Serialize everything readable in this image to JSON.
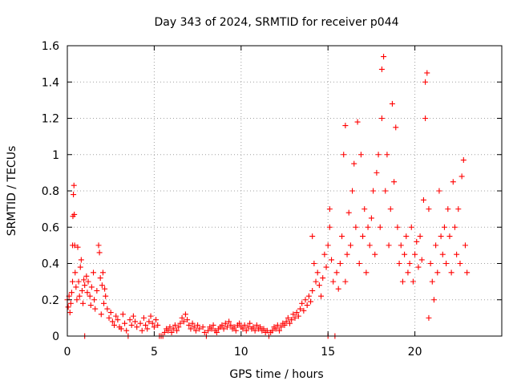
{
  "chart_data": {
    "type": "scatter",
    "title": "Day 343 of 2024, SRMTID for receiver p044",
    "xlabel": "GPS time / hours",
    "ylabel": "SRMTID / TECUs",
    "xlim": [
      0,
      25
    ],
    "ylim": [
      0,
      1.6
    ],
    "xticks": [
      0,
      5,
      10,
      15,
      20
    ],
    "xtick_labels": [
      "0",
      "5",
      "10",
      "15",
      "20"
    ],
    "yticks": [
      0,
      0.2,
      0.4,
      0.6,
      0.8,
      1.0,
      1.2,
      1.4,
      1.6
    ],
    "ytick_labels": [
      "0",
      "0.2",
      "0.4",
      "0.6",
      "0.8",
      "1",
      "1.2",
      "1.4",
      "1.6"
    ],
    "grid": true,
    "marker": "plus",
    "colors": {
      "series": "#ff0000",
      "axis": "#000000",
      "grid": "#a0a0a0"
    },
    "series": [
      {
        "name": "SRMTID",
        "points": [
          [
            0.0,
            0.2
          ],
          [
            0.05,
            0.16
          ],
          [
            0.1,
            0.22
          ],
          [
            0.15,
            0.13
          ],
          [
            0.2,
            0.18
          ],
          [
            0.25,
            0.24
          ],
          [
            0.3,
            0.3
          ],
          [
            0.3,
            0.5
          ],
          [
            0.32,
            0.66
          ],
          [
            0.35,
            0.78
          ],
          [
            0.38,
            0.83
          ],
          [
            0.4,
            0.67
          ],
          [
            0.42,
            0.5
          ],
          [
            0.45,
            0.35
          ],
          [
            0.5,
            0.27
          ],
          [
            0.55,
            0.2
          ],
          [
            0.6,
            0.49
          ],
          [
            0.65,
            0.3
          ],
          [
            0.7,
            0.22
          ],
          [
            0.75,
            0.38
          ],
          [
            0.8,
            0.42
          ],
          [
            0.85,
            0.25
          ],
          [
            0.9,
            0.18
          ],
          [
            0.95,
            0.31
          ],
          [
            1.0,
            0.28
          ],
          [
            1.0,
            0.0
          ],
          [
            1.1,
            0.33
          ],
          [
            1.15,
            0.24
          ],
          [
            1.2,
            0.3
          ],
          [
            1.3,
            0.22
          ],
          [
            1.35,
            0.17
          ],
          [
            1.4,
            0.27
          ],
          [
            1.5,
            0.35
          ],
          [
            1.55,
            0.2
          ],
          [
            1.6,
            0.15
          ],
          [
            1.7,
            0.25
          ],
          [
            1.8,
            0.5
          ],
          [
            1.85,
            0.46
          ],
          [
            1.9,
            0.32
          ],
          [
            1.95,
            0.12
          ],
          [
            2.0,
            0.28
          ],
          [
            2.05,
            0.35
          ],
          [
            2.1,
            0.18
          ],
          [
            2.15,
            0.26
          ],
          [
            2.2,
            0.22
          ],
          [
            2.3,
            0.15
          ],
          [
            2.4,
            0.1
          ],
          [
            2.5,
            0.13
          ],
          [
            2.6,
            0.08
          ],
          [
            2.7,
            0.06
          ],
          [
            2.8,
            0.11
          ],
          [
            2.9,
            0.09
          ],
          [
            3.0,
            0.05
          ],
          [
            3.1,
            0.04
          ],
          [
            3.2,
            0.12
          ],
          [
            3.3,
            0.07
          ],
          [
            3.4,
            0.03
          ],
          [
            3.5,
            0.0
          ],
          [
            3.6,
            0.09
          ],
          [
            3.7,
            0.06
          ],
          [
            3.8,
            0.11
          ],
          [
            3.9,
            0.08
          ],
          [
            4.0,
            0.05
          ],
          [
            4.2,
            0.07
          ],
          [
            4.3,
            0.03
          ],
          [
            4.4,
            0.1
          ],
          [
            4.5,
            0.06
          ],
          [
            4.6,
            0.04
          ],
          [
            4.7,
            0.08
          ],
          [
            4.8,
            0.11
          ],
          [
            4.9,
            0.07
          ],
          [
            5.0,
            0.05
          ],
          [
            5.1,
            0.09
          ],
          [
            5.2,
            0.06
          ],
          [
            5.3,
            0.0
          ],
          [
            5.4,
            0.0
          ],
          [
            5.5,
            0.0
          ],
          [
            5.6,
            0.02
          ],
          [
            5.7,
            0.04
          ],
          [
            5.8,
            0.03
          ],
          [
            5.9,
            0.05
          ],
          [
            6.0,
            0.02
          ],
          [
            6.1,
            0.04
          ],
          [
            6.2,
            0.06
          ],
          [
            6.3,
            0.03
          ],
          [
            6.4,
            0.05
          ],
          [
            6.5,
            0.07
          ],
          [
            6.6,
            0.1
          ],
          [
            6.7,
            0.08
          ],
          [
            6.8,
            0.12
          ],
          [
            6.9,
            0.09
          ],
          [
            7.0,
            0.06
          ],
          [
            7.1,
            0.04
          ],
          [
            7.2,
            0.07
          ],
          [
            7.3,
            0.05
          ],
          [
            7.4,
            0.03
          ],
          [
            7.5,
            0.06
          ],
          [
            7.6,
            0.04
          ],
          [
            7.8,
            0.05
          ],
          [
            7.9,
            0.02
          ],
          [
            8.0,
            0.0
          ],
          [
            8.1,
            0.03
          ],
          [
            8.2,
            0.05
          ],
          [
            8.3,
            0.04
          ],
          [
            8.4,
            0.06
          ],
          [
            8.5,
            0.03
          ],
          [
            8.6,
            0.02
          ],
          [
            8.7,
            0.04
          ],
          [
            8.8,
            0.05
          ],
          [
            8.9,
            0.06
          ],
          [
            9.0,
            0.04
          ],
          [
            9.1,
            0.07
          ],
          [
            9.2,
            0.05
          ],
          [
            9.3,
            0.08
          ],
          [
            9.4,
            0.06
          ],
          [
            9.5,
            0.04
          ],
          [
            9.6,
            0.05
          ],
          [
            9.7,
            0.03
          ],
          [
            9.8,
            0.06
          ],
          [
            9.9,
            0.07
          ],
          [
            10.0,
            0.05
          ],
          [
            10.1,
            0.04
          ],
          [
            10.2,
            0.06
          ],
          [
            10.3,
            0.03
          ],
          [
            10.4,
            0.05
          ],
          [
            10.5,
            0.07
          ],
          [
            10.6,
            0.04
          ],
          [
            10.7,
            0.05
          ],
          [
            10.8,
            0.03
          ],
          [
            10.9,
            0.06
          ],
          [
            11.0,
            0.04
          ],
          [
            11.1,
            0.05
          ],
          [
            11.2,
            0.03
          ],
          [
            11.3,
            0.04
          ],
          [
            11.4,
            0.02
          ],
          [
            11.5,
            0.03
          ],
          [
            11.6,
            0.0
          ],
          [
            11.7,
            0.02
          ],
          [
            11.8,
            0.03
          ],
          [
            11.9,
            0.05
          ],
          [
            12.0,
            0.04
          ],
          [
            12.1,
            0.06
          ],
          [
            12.2,
            0.03
          ],
          [
            12.3,
            0.05
          ],
          [
            12.4,
            0.07
          ],
          [
            12.5,
            0.06
          ],
          [
            12.6,
            0.08
          ],
          [
            12.7,
            0.1
          ],
          [
            12.8,
            0.07
          ],
          [
            12.9,
            0.09
          ],
          [
            13.0,
            0.12
          ],
          [
            13.1,
            0.1
          ],
          [
            13.2,
            0.13
          ],
          [
            13.3,
            0.11
          ],
          [
            13.4,
            0.15
          ],
          [
            13.5,
            0.18
          ],
          [
            13.6,
            0.14
          ],
          [
            13.7,
            0.2
          ],
          [
            13.8,
            0.17
          ],
          [
            13.9,
            0.22
          ],
          [
            14.0,
            0.19
          ],
          [
            14.1,
            0.25
          ],
          [
            14.1,
            0.55
          ],
          [
            14.2,
            0.4
          ],
          [
            14.3,
            0.3
          ],
          [
            14.4,
            0.35
          ],
          [
            14.5,
            0.28
          ],
          [
            14.6,
            0.22
          ],
          [
            14.7,
            0.32
          ],
          [
            14.8,
            0.45
          ],
          [
            14.9,
            0.38
          ],
          [
            15.0,
            0.5
          ],
          [
            15.0,
            0.0
          ],
          [
            15.1,
            0.6
          ],
          [
            15.1,
            0.7
          ],
          [
            15.2,
            0.42
          ],
          [
            15.3,
            0.3
          ],
          [
            15.4,
            0.0
          ],
          [
            15.5,
            0.35
          ],
          [
            15.6,
            0.26
          ],
          [
            15.7,
            0.4
          ],
          [
            15.8,
            0.55
          ],
          [
            15.9,
            1.0
          ],
          [
            16.0,
            1.16
          ],
          [
            16.0,
            0.3
          ],
          [
            16.1,
            0.45
          ],
          [
            16.2,
            0.68
          ],
          [
            16.3,
            0.5
          ],
          [
            16.4,
            0.8
          ],
          [
            16.5,
            0.95
          ],
          [
            16.6,
            0.6
          ],
          [
            16.7,
            1.18
          ],
          [
            16.8,
            0.4
          ],
          [
            16.9,
            1.0
          ],
          [
            17.0,
            0.55
          ],
          [
            17.1,
            0.7
          ],
          [
            17.2,
            0.35
          ],
          [
            17.3,
            0.6
          ],
          [
            17.4,
            0.5
          ],
          [
            17.5,
            0.65
          ],
          [
            17.6,
            0.8
          ],
          [
            17.7,
            0.45
          ],
          [
            17.8,
            0.9
          ],
          [
            17.9,
            1.0
          ],
          [
            18.0,
            0.6
          ],
          [
            18.1,
            1.2
          ],
          [
            18.1,
            1.47
          ],
          [
            18.2,
            1.54
          ],
          [
            18.3,
            0.8
          ],
          [
            18.4,
            1.0
          ],
          [
            18.5,
            0.5
          ],
          [
            18.6,
            0.7
          ],
          [
            18.7,
            1.28
          ],
          [
            18.8,
            0.85
          ],
          [
            18.9,
            1.15
          ],
          [
            19.0,
            0.6
          ],
          [
            19.1,
            0.4
          ],
          [
            19.2,
            0.5
          ],
          [
            19.3,
            0.3
          ],
          [
            19.4,
            0.45
          ],
          [
            19.5,
            0.55
          ],
          [
            19.6,
            0.35
          ],
          [
            19.7,
            0.4
          ],
          [
            19.8,
            0.6
          ],
          [
            19.9,
            0.3
          ],
          [
            20.0,
            0.45
          ],
          [
            20.1,
            0.52
          ],
          [
            20.2,
            0.38
          ],
          [
            20.3,
            0.55
          ],
          [
            20.4,
            0.42
          ],
          [
            20.5,
            0.75
          ],
          [
            20.6,
            1.2
          ],
          [
            20.6,
            1.4
          ],
          [
            20.7,
            1.45
          ],
          [
            20.8,
            0.7
          ],
          [
            20.8,
            0.1
          ],
          [
            20.9,
            0.4
          ],
          [
            21.0,
            0.3
          ],
          [
            21.1,
            0.2
          ],
          [
            21.2,
            0.5
          ],
          [
            21.3,
            0.35
          ],
          [
            21.4,
            0.8
          ],
          [
            21.5,
            0.55
          ],
          [
            21.6,
            0.45
          ],
          [
            21.7,
            0.6
          ],
          [
            21.8,
            0.4
          ],
          [
            21.9,
            0.7
          ],
          [
            22.0,
            0.55
          ],
          [
            22.1,
            0.35
          ],
          [
            22.2,
            0.85
          ],
          [
            22.3,
            0.6
          ],
          [
            22.4,
            0.45
          ],
          [
            22.5,
            0.7
          ],
          [
            22.6,
            0.4
          ],
          [
            22.7,
            0.88
          ],
          [
            22.8,
            0.97
          ],
          [
            22.9,
            0.5
          ],
          [
            23.0,
            0.35
          ]
        ]
      }
    ]
  }
}
